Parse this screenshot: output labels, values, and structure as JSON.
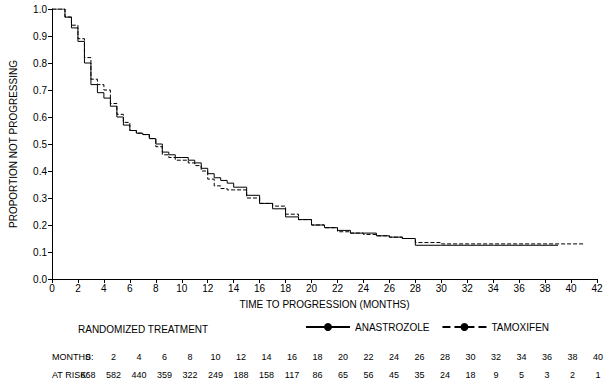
{
  "chart_data": {
    "type": "line",
    "x_label": "TIME TO PROGRESSION (MONTHS)",
    "y_label": "PROPORTION NOT PROGRESSING",
    "xlim": [
      0,
      42
    ],
    "xticks": [
      0,
      2,
      4,
      6,
      8,
      10,
      12,
      14,
      16,
      18,
      20,
      22,
      24,
      26,
      28,
      30,
      32,
      34,
      36,
      38,
      40,
      42
    ],
    "ylim": [
      0,
      1
    ],
    "yticks": [
      {
        "value": 0,
        "label": "0.0"
      },
      0.1,
      0.2,
      0.3,
      0.4,
      0.5,
      0.6,
      0.7,
      0.8,
      0.9,
      {
        "value": 1,
        "label": "1.0"
      }
    ],
    "legend": "bottom",
    "legend_title": "RANDOMIZED TREATMENT",
    "series": [
      {
        "name": "ANASTROZOLE",
        "color": "#000000",
        "line_style": "solid",
        "x": [
          0,
          0.5,
          1,
          1.5,
          2,
          2.5,
          3,
          3.5,
          4,
          4.5,
          5,
          5.5,
          6,
          6.5,
          7,
          7.5,
          8,
          8.5,
          9,
          9.5,
          10,
          10.5,
          11,
          11.5,
          12,
          12.5,
          13,
          13.5,
          14,
          15,
          16,
          17,
          18,
          19,
          20,
          21,
          22,
          23,
          24,
          25,
          26,
          27,
          28,
          30,
          34,
          39
        ],
        "values": [
          1.0,
          1.0,
          0.97,
          0.93,
          0.88,
          0.8,
          0.72,
          0.69,
          0.67,
          0.64,
          0.6,
          0.57,
          0.55,
          0.54,
          0.535,
          0.52,
          0.5,
          0.47,
          0.46,
          0.45,
          0.45,
          0.44,
          0.43,
          0.41,
          0.39,
          0.375,
          0.365,
          0.355,
          0.34,
          0.31,
          0.28,
          0.26,
          0.23,
          0.22,
          0.2,
          0.19,
          0.18,
          0.17,
          0.17,
          0.16,
          0.155,
          0.15,
          0.125,
          0.125,
          0.125,
          0.125
        ]
      },
      {
        "name": "TAMOXIFEN",
        "color": "#000000",
        "line_style": "dashed",
        "x": [
          0,
          0.5,
          1,
          1.5,
          2,
          2.5,
          3,
          3.5,
          4,
          4.5,
          5,
          5.5,
          6,
          6.5,
          7,
          7.5,
          8,
          8.5,
          9,
          9.5,
          10,
          10.5,
          11,
          11.5,
          12,
          12.5,
          13,
          13.5,
          14,
          15,
          16,
          17,
          18,
          19,
          20,
          21,
          22,
          23,
          24,
          25,
          26,
          27,
          28,
          30,
          34,
          38,
          41
        ],
        "values": [
          1.0,
          1.0,
          0.97,
          0.94,
          0.89,
          0.82,
          0.74,
          0.72,
          0.7,
          0.65,
          0.61,
          0.58,
          0.55,
          0.54,
          0.535,
          0.52,
          0.49,
          0.46,
          0.45,
          0.44,
          0.44,
          0.43,
          0.42,
          0.4,
          0.37,
          0.345,
          0.335,
          0.33,
          0.33,
          0.3,
          0.28,
          0.27,
          0.24,
          0.22,
          0.2,
          0.19,
          0.175,
          0.17,
          0.165,
          0.16,
          0.155,
          0.15,
          0.135,
          0.13,
          0.13,
          0.13,
          0.13
        ]
      }
    ],
    "at_risk": {
      "months_label": "MONTHS:",
      "months": [
        0,
        2,
        4,
        6,
        8,
        10,
        12,
        14,
        16,
        18,
        20,
        22,
        24,
        26,
        28,
        30,
        32,
        34,
        36,
        38,
        40
      ],
      "counts_label": "AT RISK:",
      "counts": [
        668,
        582,
        440,
        359,
        322,
        249,
        188,
        158,
        117,
        86,
        65,
        56,
        45,
        35,
        24,
        18,
        9,
        5,
        3,
        2,
        1
      ]
    }
  }
}
